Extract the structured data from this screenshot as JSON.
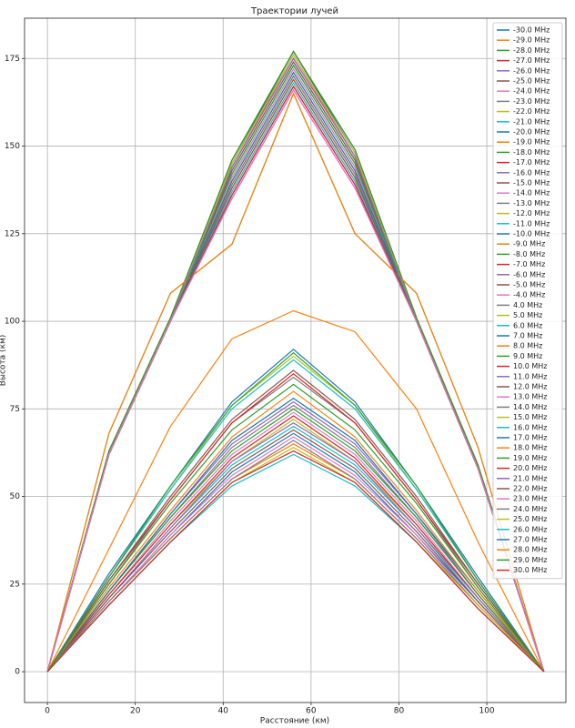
{
  "chart_data": {
    "type": "line",
    "title": "Траектории лучей",
    "x_label": "Расстояние (км)",
    "y_label": "Высота (км)",
    "x": [
      0,
      14,
      28,
      42,
      56,
      70,
      84,
      98,
      113
    ],
    "xlim": [
      -5.2,
      118
    ],
    "ylim": [
      -8.8,
      186.5
    ],
    "xticks": [
      0,
      20,
      40,
      60,
      80,
      100
    ],
    "yticks": [
      0,
      25,
      50,
      75,
      100,
      125,
      150,
      175
    ],
    "grid": true,
    "legend": "upper right",
    "series": [
      {
        "name": "-30.0 MHz",
        "color": "#1f77b4",
        "values": [
          0,
          62,
          100,
          145,
          177,
          148,
          100,
          58,
          0
        ]
      },
      {
        "name": "-29.0 MHz",
        "color": "#ff7f0e",
        "values": [
          0,
          62,
          100,
          144,
          176,
          147,
          100,
          58,
          0
        ]
      },
      {
        "name": "-28.0 MHz",
        "color": "#2ca02c",
        "values": [
          0,
          68,
          108,
          122,
          165,
          125,
          108,
          64,
          0
        ]
      },
      {
        "name": "-27.0 MHz",
        "color": "#d62728",
        "values": [
          0,
          63,
          101,
          146,
          177,
          149,
          101,
          59,
          0
        ]
      },
      {
        "name": "-26.0 MHz",
        "color": "#9467bd",
        "values": [
          0,
          62,
          100,
          141,
          172,
          144,
          100,
          58,
          0
        ]
      },
      {
        "name": "-25.0 MHz",
        "color": "#8c564b",
        "values": [
          0,
          62,
          100,
          139,
          170,
          142,
          100,
          58,
          0
        ]
      },
      {
        "name": "-24.0 MHz",
        "color": "#e377c2",
        "values": [
          0,
          62,
          100,
          137,
          168,
          140,
          100,
          58,
          0
        ]
      },
      {
        "name": "-23.0 MHz",
        "color": "#7f7f7f",
        "values": [
          0,
          62,
          100,
          143,
          174,
          146,
          100,
          58,
          0
        ]
      },
      {
        "name": "-22.0 MHz",
        "color": "#bcbd22",
        "values": [
          0,
          62,
          100,
          140,
          171,
          143,
          100,
          58,
          0
        ]
      },
      {
        "name": "-21.0 MHz",
        "color": "#17becf",
        "values": [
          0,
          62,
          100,
          142,
          173,
          145,
          100,
          58,
          0
        ]
      },
      {
        "name": "-20.0 MHz",
        "color": "#1f77b4",
        "values": [
          0,
          62,
          100,
          144,
          175,
          147,
          100,
          58,
          0
        ]
      },
      {
        "name": "-19.0 MHz",
        "color": "#ff7f0e",
        "values": [
          0,
          62,
          100,
          138,
          169,
          141,
          100,
          58,
          0
        ]
      },
      {
        "name": "-18.0 MHz",
        "color": "#2ca02c",
        "values": [
          0,
          63,
          101,
          146,
          177,
          149,
          101,
          59,
          0
        ]
      },
      {
        "name": "-17.0 MHz",
        "color": "#d62728",
        "values": [
          0,
          62,
          100,
          136,
          167,
          139,
          100,
          58,
          0
        ]
      },
      {
        "name": "-16.0 MHz",
        "color": "#9467bd",
        "values": [
          0,
          62,
          100,
          135,
          166,
          138,
          100,
          58,
          0
        ]
      },
      {
        "name": "-15.0 MHz",
        "color": "#8c564b",
        "values": [
          0,
          62,
          100,
          143,
          174,
          146,
          100,
          58,
          0
        ]
      },
      {
        "name": "-14.0 MHz",
        "color": "#e377c2",
        "values": [
          0,
          62,
          100,
          141,
          172,
          144,
          100,
          58,
          0
        ]
      },
      {
        "name": "-13.0 MHz",
        "color": "#7f7f7f",
        "values": [
          0,
          62,
          100,
          139,
          170,
          142,
          100,
          58,
          0
        ]
      },
      {
        "name": "-12.0 MHz",
        "color": "#bcbd22",
        "values": [
          0,
          62,
          100,
          145,
          176,
          148,
          100,
          58,
          0
        ]
      },
      {
        "name": "-11.0 MHz",
        "color": "#17becf",
        "values": [
          0,
          62,
          100,
          137,
          168,
          140,
          100,
          58,
          0
        ]
      },
      {
        "name": "-10.0 MHz",
        "color": "#1f77b4",
        "values": [
          0,
          62,
          100,
          140,
          171,
          143,
          100,
          58,
          0
        ]
      },
      {
        "name": "-9.0 MHz",
        "color": "#ff7f0e",
        "values": [
          0,
          68,
          108,
          122,
          165,
          125,
          108,
          64,
          0
        ]
      },
      {
        "name": "-8.0 MHz",
        "color": "#2ca02c",
        "values": [
          0,
          62,
          100,
          142,
          173,
          145,
          100,
          58,
          0
        ]
      },
      {
        "name": "-7.0 MHz",
        "color": "#d62728",
        "values": [
          0,
          62,
          100,
          136,
          167,
          139,
          100,
          58,
          0
        ]
      },
      {
        "name": "-6.0 MHz",
        "color": "#9467bd",
        "values": [
          0,
          62,
          100,
          144,
          175,
          147,
          100,
          58,
          0
        ]
      },
      {
        "name": "-5.0 MHz",
        "color": "#8c564b",
        "values": [
          0,
          62,
          100,
          138,
          169,
          141,
          100,
          58,
          0
        ]
      },
      {
        "name": "-4.0 MHz",
        "color": "#e377c2",
        "values": [
          0,
          62,
          100,
          135,
          166,
          138,
          100,
          58,
          0
        ]
      },
      {
        "name": "4.0 MHz",
        "color": "#7f7f7f",
        "values": [
          0,
          25,
          49,
          71,
          84,
          71,
          49,
          24,
          0
        ]
      },
      {
        "name": "5.0 MHz",
        "color": "#bcbd22",
        "values": [
          0,
          27,
          52,
          76,
          90,
          76,
          52,
          26,
          0
        ]
      },
      {
        "name": "6.0 MHz",
        "color": "#17becf",
        "values": [
          0,
          27,
          52,
          75,
          89,
          75,
          52,
          26,
          0
        ]
      },
      {
        "name": "7.0 MHz",
        "color": "#1f77b4",
        "values": [
          0,
          28,
          53,
          77,
          92,
          77,
          53,
          27,
          0
        ]
      },
      {
        "name": "8.0 MHz",
        "color": "#ff7f0e",
        "values": [
          0,
          35,
          70,
          95,
          103,
          97,
          75,
          37,
          0
        ]
      },
      {
        "name": "9.0 MHz",
        "color": "#2ca02c",
        "values": [
          0,
          27,
          53,
          76,
          91,
          76,
          53,
          26,
          0
        ]
      },
      {
        "name": "10.0 MHz",
        "color": "#d62728",
        "values": [
          0,
          26,
          49,
          71,
          85,
          71,
          49,
          25,
          0
        ]
      },
      {
        "name": "11.0 MHz",
        "color": "#9467bd",
        "values": [
          0,
          23,
          45,
          65,
          77,
          65,
          45,
          22,
          0
        ]
      },
      {
        "name": "12.0 MHz",
        "color": "#8c564b",
        "values": [
          0,
          26,
          50,
          72,
          86,
          72,
          50,
          25,
          0
        ]
      },
      {
        "name": "13.0 MHz",
        "color": "#e377c2",
        "values": [
          0,
          22,
          43,
          62,
          74,
          62,
          43,
          21,
          0
        ]
      },
      {
        "name": "14.0 MHz",
        "color": "#7f7f7f",
        "values": [
          0,
          23,
          44,
          64,
          76,
          64,
          44,
          22,
          0
        ]
      },
      {
        "name": "15.0 MHz",
        "color": "#bcbd22",
        "values": [
          0,
          22,
          42,
          60,
          72,
          60,
          42,
          21,
          0
        ]
      },
      {
        "name": "16.0 MHz",
        "color": "#17becf",
        "values": [
          0,
          21,
          41,
          59,
          70,
          59,
          41,
          20,
          0
        ]
      },
      {
        "name": "17.0 MHz",
        "color": "#1f77b4",
        "values": [
          0,
          20,
          39,
          57,
          68,
          57,
          39,
          20,
          0
        ]
      },
      {
        "name": "18.0 MHz",
        "color": "#ff7f0e",
        "values": [
          0,
          20,
          38,
          55,
          65,
          55,
          38,
          19,
          0
        ]
      },
      {
        "name": "19.0 MHz",
        "color": "#2ca02c",
        "values": [
          0,
          23,
          44,
          63,
          75,
          63,
          44,
          22,
          0
        ]
      },
      {
        "name": "20.0 MHz",
        "color": "#d62728",
        "values": [
          0,
          22,
          42,
          61,
          73,
          61,
          42,
          21,
          0
        ]
      },
      {
        "name": "21.0 MHz",
        "color": "#9467bd",
        "values": [
          0,
          21,
          41,
          60,
          71,
          60,
          41,
          21,
          0
        ]
      },
      {
        "name": "22.0 MHz",
        "color": "#8c564b",
        "values": [
          0,
          21,
          40,
          58,
          69,
          58,
          40,
          20,
          0
        ]
      },
      {
        "name": "23.0 MHz",
        "color": "#e377c2",
        "values": [
          0,
          20,
          39,
          56,
          67,
          56,
          39,
          19,
          0
        ]
      },
      {
        "name": "24.0 MHz",
        "color": "#7f7f7f",
        "values": [
          0,
          20,
          38,
          55,
          66,
          55,
          38,
          19,
          0
        ]
      },
      {
        "name": "25.0 MHz",
        "color": "#bcbd22",
        "values": [
          0,
          19,
          37,
          54,
          64,
          54,
          37,
          19,
          0
        ]
      },
      {
        "name": "26.0 MHz",
        "color": "#17becf",
        "values": [
          0,
          19,
          37,
          53,
          62,
          53,
          37,
          18,
          0
        ]
      },
      {
        "name": "27.0 MHz",
        "color": "#1f77b4",
        "values": [
          0,
          23,
          45,
          66,
          78,
          66,
          45,
          23,
          0
        ]
      },
      {
        "name": "28.0 MHz",
        "color": "#ff7f0e",
        "values": [
          0,
          24,
          46,
          67,
          80,
          67,
          46,
          23,
          0
        ]
      },
      {
        "name": "29.0 MHz",
        "color": "#2ca02c",
        "values": [
          0,
          25,
          48,
          69,
          82,
          69,
          48,
          24,
          0
        ]
      },
      {
        "name": "30.0 MHz",
        "color": "#d62728",
        "values": [
          0,
          19,
          37,
          54,
          63,
          54,
          37,
          18,
          0
        ]
      }
    ]
  }
}
